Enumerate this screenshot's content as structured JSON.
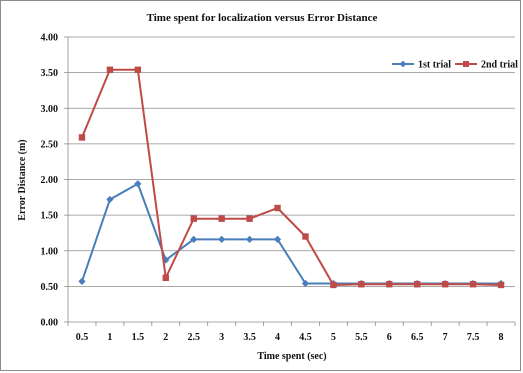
{
  "chart_data": {
    "type": "line",
    "title": "Time spent for localization versus Error Distance",
    "xlabel": "Time spent (sec)",
    "ylabel": "Error Distance (m)",
    "categories": [
      "0.5",
      "1",
      "1.5",
      "2",
      "2.5",
      "3",
      "3.5",
      "4",
      "4.5",
      "5",
      "5.5",
      "6",
      "6.5",
      "7",
      "7.5",
      "8"
    ],
    "ylim": [
      0,
      4
    ],
    "yticks": [
      "0.00",
      "0.50",
      "1.00",
      "1.50",
      "2.00",
      "2.50",
      "3.00",
      "3.50",
      "4.00"
    ],
    "grid": "horizontal",
    "legend_position": "top-right",
    "series": [
      {
        "name": "1st trial",
        "color": "#4a7ebb",
        "marker": "diamond",
        "values": [
          0.57,
          1.72,
          1.94,
          0.87,
          1.16,
          1.16,
          1.16,
          1.16,
          0.54,
          0.54,
          0.54,
          0.54,
          0.54,
          0.54,
          0.54,
          0.54
        ]
      },
      {
        "name": "2nd trial",
        "color": "#be4b48",
        "marker": "square",
        "values": [
          2.59,
          3.54,
          3.54,
          0.62,
          1.45,
          1.45,
          1.45,
          1.6,
          1.2,
          0.52,
          0.53,
          0.53,
          0.53,
          0.53,
          0.53,
          0.52
        ]
      }
    ]
  }
}
